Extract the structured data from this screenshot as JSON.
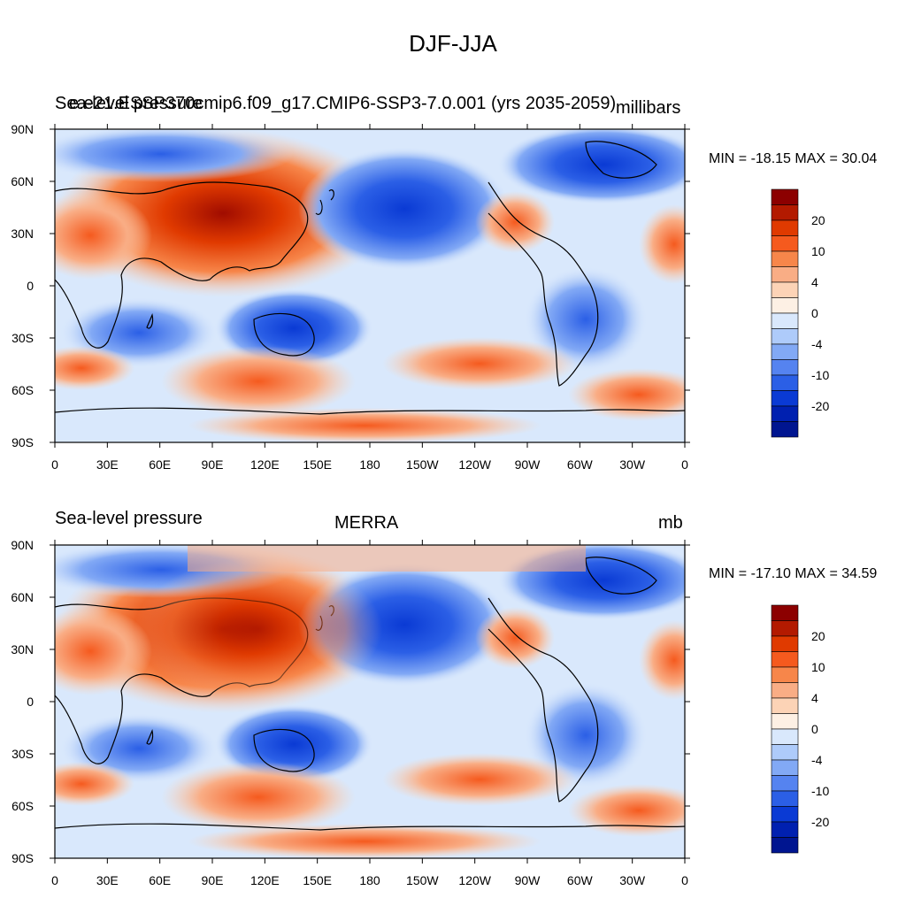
{
  "title": "DJF-JJA",
  "panels": [
    {
      "left_title": "Sea-level pressure",
      "center_title": "e.e21.ESSP370cmip6.f09_g17.CMIP6-SSP3-7.0.001 (yrs 2035-2059)",
      "units": "millibars",
      "min_max": "MIN = -18.15 MAX =  30.04"
    },
    {
      "left_title": "Sea-level pressure",
      "center_title": "MERRA",
      "units": "mb",
      "min_max": "MIN = -17.10 MAX =  34.59"
    }
  ],
  "axes": {
    "lat_labels": [
      "90N",
      "60N",
      "30N",
      "0",
      "30S",
      "60S",
      "90S"
    ],
    "lon_labels": [
      "0",
      "30E",
      "60E",
      "90E",
      "120E",
      "150E",
      "180",
      "150W",
      "120W",
      "90W",
      "60W",
      "30W",
      "0"
    ]
  },
  "colorbar": {
    "colors": [
      "#8c0000",
      "#b31a00",
      "#e03a00",
      "#f55a1e",
      "#f7864a",
      "#f9ad85",
      "#fcd3b6",
      "#fdf0e4",
      "#d9e8fc",
      "#aecbfa",
      "#82a9f5",
      "#5583f0",
      "#2b5fe6",
      "#0a3ad4",
      "#0020b0",
      "#001590"
    ],
    "labels": [
      "20",
      "10",
      "4",
      "0",
      "-4",
      "-10",
      "-20"
    ]
  }
}
